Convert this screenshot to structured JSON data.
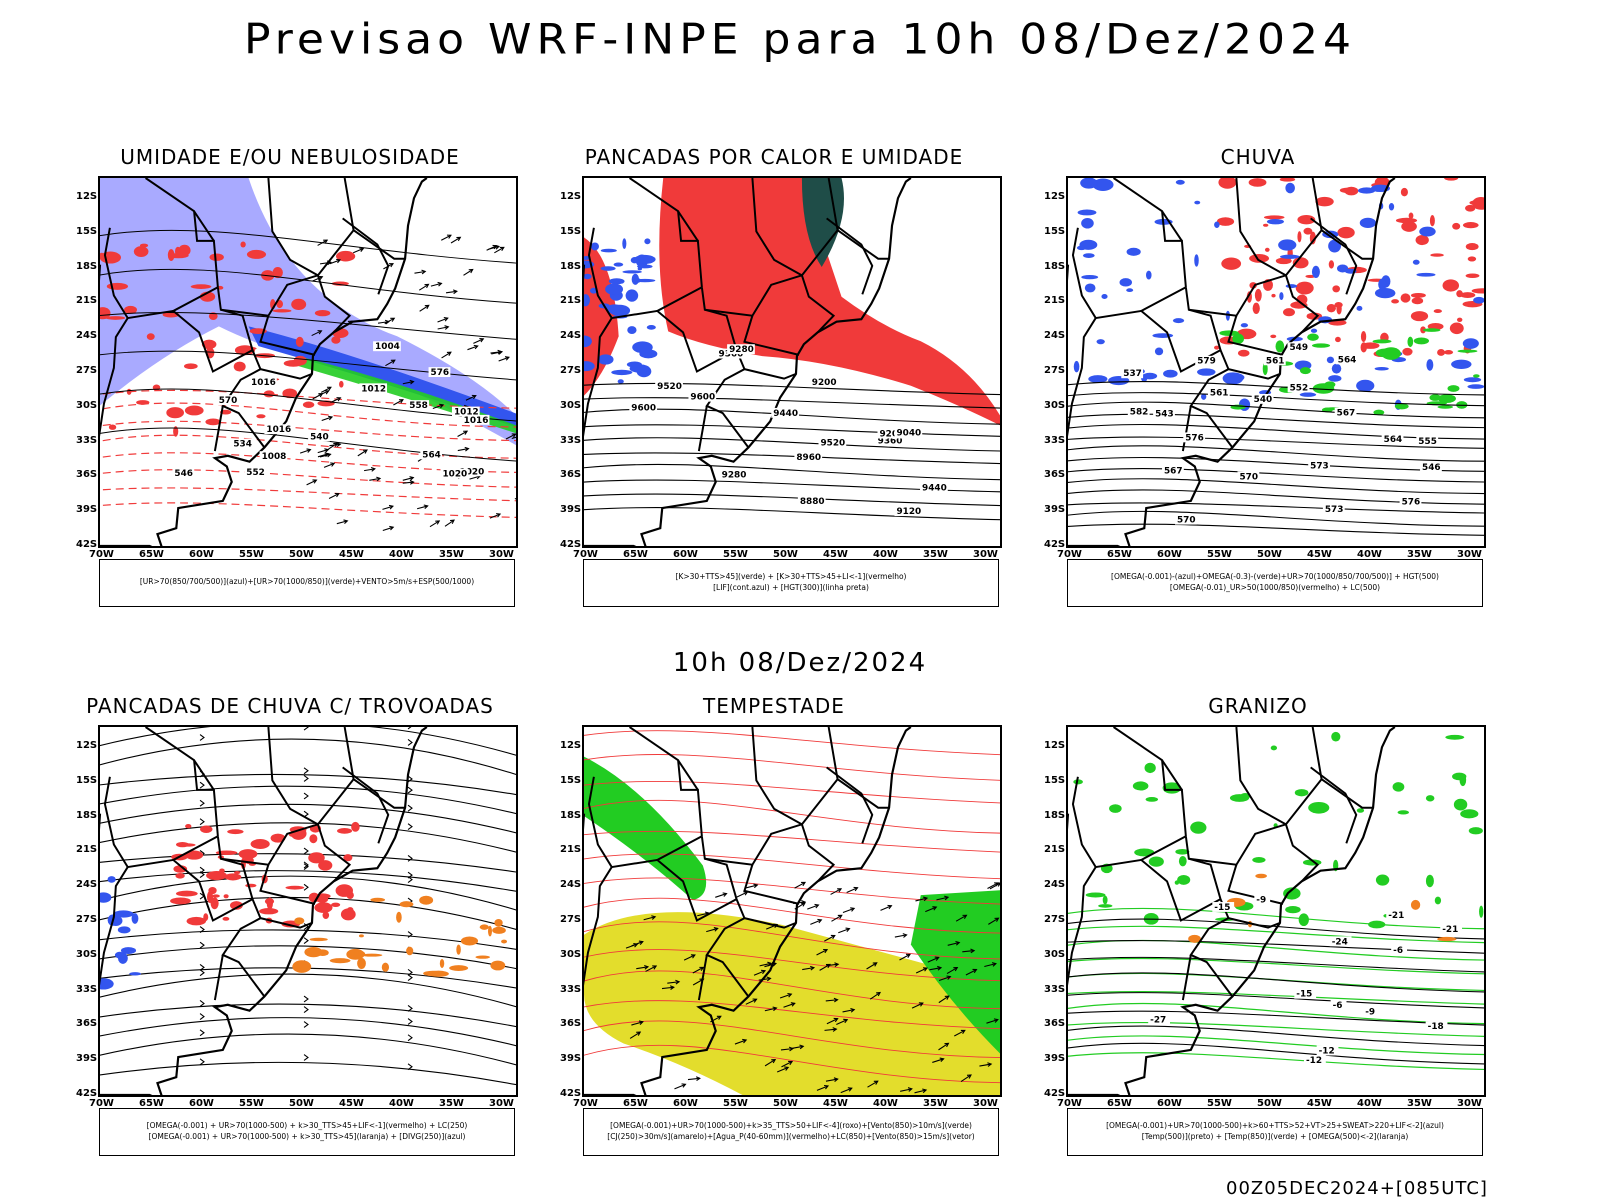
{
  "title": "Previsao WRF-INPE  para 10h 08/Dez/2024",
  "middle_title": "10h 08/Dez/2024",
  "footer": "00Z05DEC2024+[085UTC]",
  "lat_labels": [
    "12S",
    "15S",
    "18S",
    "21S",
    "24S",
    "27S",
    "30S",
    "33S",
    "36S",
    "39S",
    "42S"
  ],
  "lon_labels": [
    "70W",
    "65W",
    "60W",
    "55W",
    "50W",
    "45W",
    "40W",
    "35W",
    "30W"
  ],
  "colors": {
    "blue": "#3355ee",
    "light_blue": "#a9aaff",
    "green": "#22cc22",
    "red": "#f03a3a",
    "dark_teal": "#1f4d48",
    "yellow": "#e3dd2c",
    "orange": "#f08020",
    "black": "#000000"
  },
  "panels": [
    {
      "title": "UMIDADE E/OU NEBULOSIDADE",
      "legend": [
        "[UR>70(850/700/500)](azul)+[UR>70(1000/850)](verde)+VENTO>5m/s+ESP(500/1000)"
      ],
      "contour_labels": [
        "1016",
        "1012",
        "1012",
        "1016",
        "1016",
        "1020",
        "1008",
        "1004",
        "1020",
        "576",
        "570",
        "564",
        "558",
        "552",
        "546",
        "540",
        "534"
      ]
    },
    {
      "title": "PANCADAS POR CALOR E UMIDADE",
      "legend": [
        "[K>30+TTS>45](verde) + [K>30+TTS>45+LI<-1](vermelho)",
        "[LIF](cont.azul) + [HGT(300)](linha preta)"
      ],
      "contour_labels": [
        "9600",
        "9520",
        "9440",
        "9360",
        "9280",
        "9200",
        "9600",
        "9520",
        "9440",
        "9360",
        "9280",
        "9200",
        "9120",
        "9040",
        "8960",
        "8880"
      ]
    },
    {
      "title": "CHUVA",
      "legend": [
        "[OMEGA(-0.001)-(azul)+OMEGA(-0.3)-(verde)+UR>70(1000/850/700/500)] + HGT(500)",
        "[OMEGA(-0.01)_UR>50(1000/850)(vermelho) + LC(500)"
      ],
      "contour_labels": [
        "582",
        "579",
        "576",
        "573",
        "570",
        "567",
        "564",
        "561",
        "576",
        "573",
        "570",
        "567",
        "564",
        "561",
        "555",
        "552",
        "549",
        "546",
        "543",
        "540",
        "537"
      ]
    },
    {
      "title": "PANCADAS DE CHUVA C/ TROVOADAS",
      "legend": [
        "[OMEGA(-0.001) + UR>70(1000-500) + k>30_TTS>45+LIF<-1](vermelho) + LC(250)",
        "[OMEGA(-0.001) + UR>70(1000-500) + k>30_TTS>45](laranja) + [DIVG(250)](azul)"
      ],
      "contour_labels": []
    },
    {
      "title": "TEMPESTADE",
      "legend": [
        "[OMEGA(-0.001)+UR>70(1000-500)+k>35_TTS>50+LIF<-4](roxo)+[Vento(850)>10m/s](verde)",
        "[CJ(250)>30m/s](amarelo)+[Agua_P(40-60mm)](vermelho)+LC(850)+[Vento(850)>15m/s](vetor)"
      ],
      "contour_labels": []
    },
    {
      "title": "GRANIZO",
      "legend": [
        "[OMEGA(-0.001)+UR>70(1000-500)+k>60+TTS>52+VT>25+SWEAT>220+LIF<-2](azul)",
        "[Temp(500)](preto) + [Temp(850)](verde) + [OMEGA(500)<-2](laranja)"
      ],
      "contour_labels": [
        "-6",
        "-9",
        "-12",
        "-15",
        "-18",
        "-21",
        "-24",
        "-27",
        "-21",
        "-15",
        "-12",
        "-9",
        "-6"
      ]
    }
  ]
}
